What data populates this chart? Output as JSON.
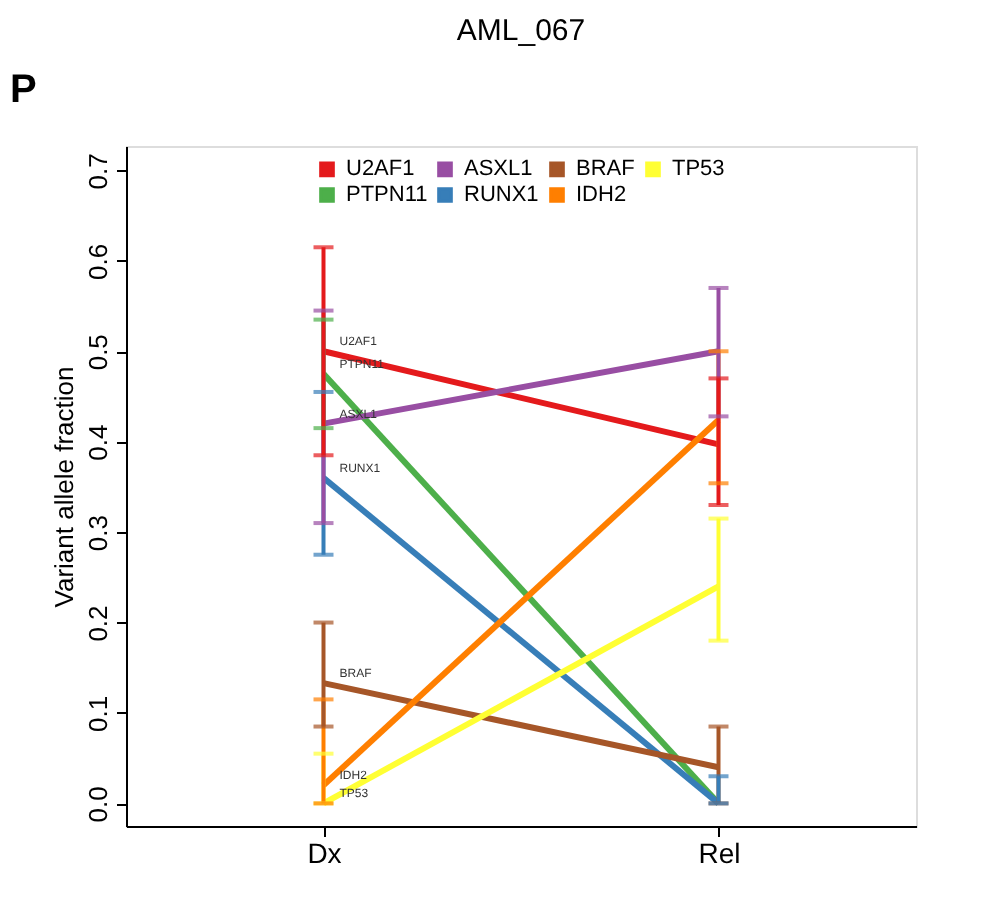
{
  "chart_data": {
    "type": "line",
    "title": "AML_067",
    "ylabel": "Variant allele fraction",
    "categories": [
      "Dx",
      "Rel"
    ],
    "ylim": [
      -0.025,
      0.727
    ],
    "yticks": [
      {
        "value": 0,
        "label": "0.0"
      },
      0.1,
      0.2,
      0.3,
      0.4,
      0.5,
      0.6,
      0.7
    ],
    "grid": false,
    "legend": "top",
    "marker": "none",
    "line_style": "solid",
    "series": [
      {
        "name": "U2AF1",
        "color": "#e41a1c",
        "values": [
          0.5,
          0.397
        ],
        "errors": [
          [
            0.385,
            0.615
          ],
          [
            0.33,
            0.47
          ]
        ]
      },
      {
        "name": "PTPN11",
        "color": "#4daf4a",
        "values": [
          0.475,
          0.0
        ],
        "errors": [
          [
            0.415,
            0.535
          ],
          null
        ]
      },
      {
        "name": "ASXL1",
        "color": "#984ea3",
        "values": [
          0.42,
          0.5
        ],
        "errors": [
          [
            0.31,
            0.545
          ],
          [
            0.428,
            0.57
          ]
        ]
      },
      {
        "name": "RUNX1",
        "color": "#377eb8",
        "values": [
          0.36,
          0.0
        ],
        "errors": [
          [
            0.275,
            0.455
          ],
          [
            0.0,
            0.03
          ]
        ]
      },
      {
        "name": "BRAF",
        "color": "#a65628",
        "values": [
          0.133,
          0.04
        ],
        "errors": [
          [
            0.085,
            0.2
          ],
          [
            0.0,
            0.085
          ]
        ]
      },
      {
        "name": "IDH2",
        "color": "#ff7f00",
        "values": [
          0.02,
          0.424
        ],
        "errors": [
          [
            0.0,
            0.115
          ],
          [
            0.354,
            0.5
          ]
        ]
      },
      {
        "name": "TP53",
        "color": "#ffff33",
        "values": [
          0.0,
          0.24
        ],
        "errors": [
          [
            0.0,
            0.055
          ],
          [
            0.18,
            0.315
          ]
        ]
      }
    ],
    "annotations": [
      "P"
    ]
  }
}
